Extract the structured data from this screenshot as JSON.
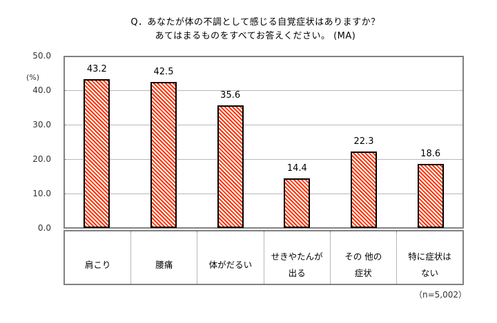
{
  "chart_data": {
    "type": "bar",
    "title": "Q．あなたが体の不調として感じる自覚症状はありますか？",
    "subtitle": "あてはまるものをすべてお答えください。 (MA)",
    "categories": [
      "肩こり",
      "腰痛",
      "体がだるい",
      "せきやたんが出る",
      "その 他の症状",
      "特に症状はない"
    ],
    "category_labels_display": [
      "肩こり",
      "腰痛",
      "体がだるい",
      "せきやたんが\n出る",
      "その 他の\n症状",
      "特に症状は\nない"
    ],
    "values": [
      43.2,
      42.5,
      35.6,
      14.4,
      22.3,
      18.6
    ],
    "value_labels": [
      "43.2",
      "42.5",
      "35.6",
      "14.4",
      "22.3",
      "18.6"
    ],
    "xlabel": "",
    "ylabel": "(%)",
    "ylim": [
      0,
      50
    ],
    "yticks": [
      "0.0",
      "10.0",
      "20.0",
      "30.0",
      "40.0",
      "50.0"
    ],
    "grid": true,
    "legend": null,
    "bar_color": "#ff3300",
    "bar_pattern": "diagonal-hatch",
    "note": "（n=5,002）"
  }
}
